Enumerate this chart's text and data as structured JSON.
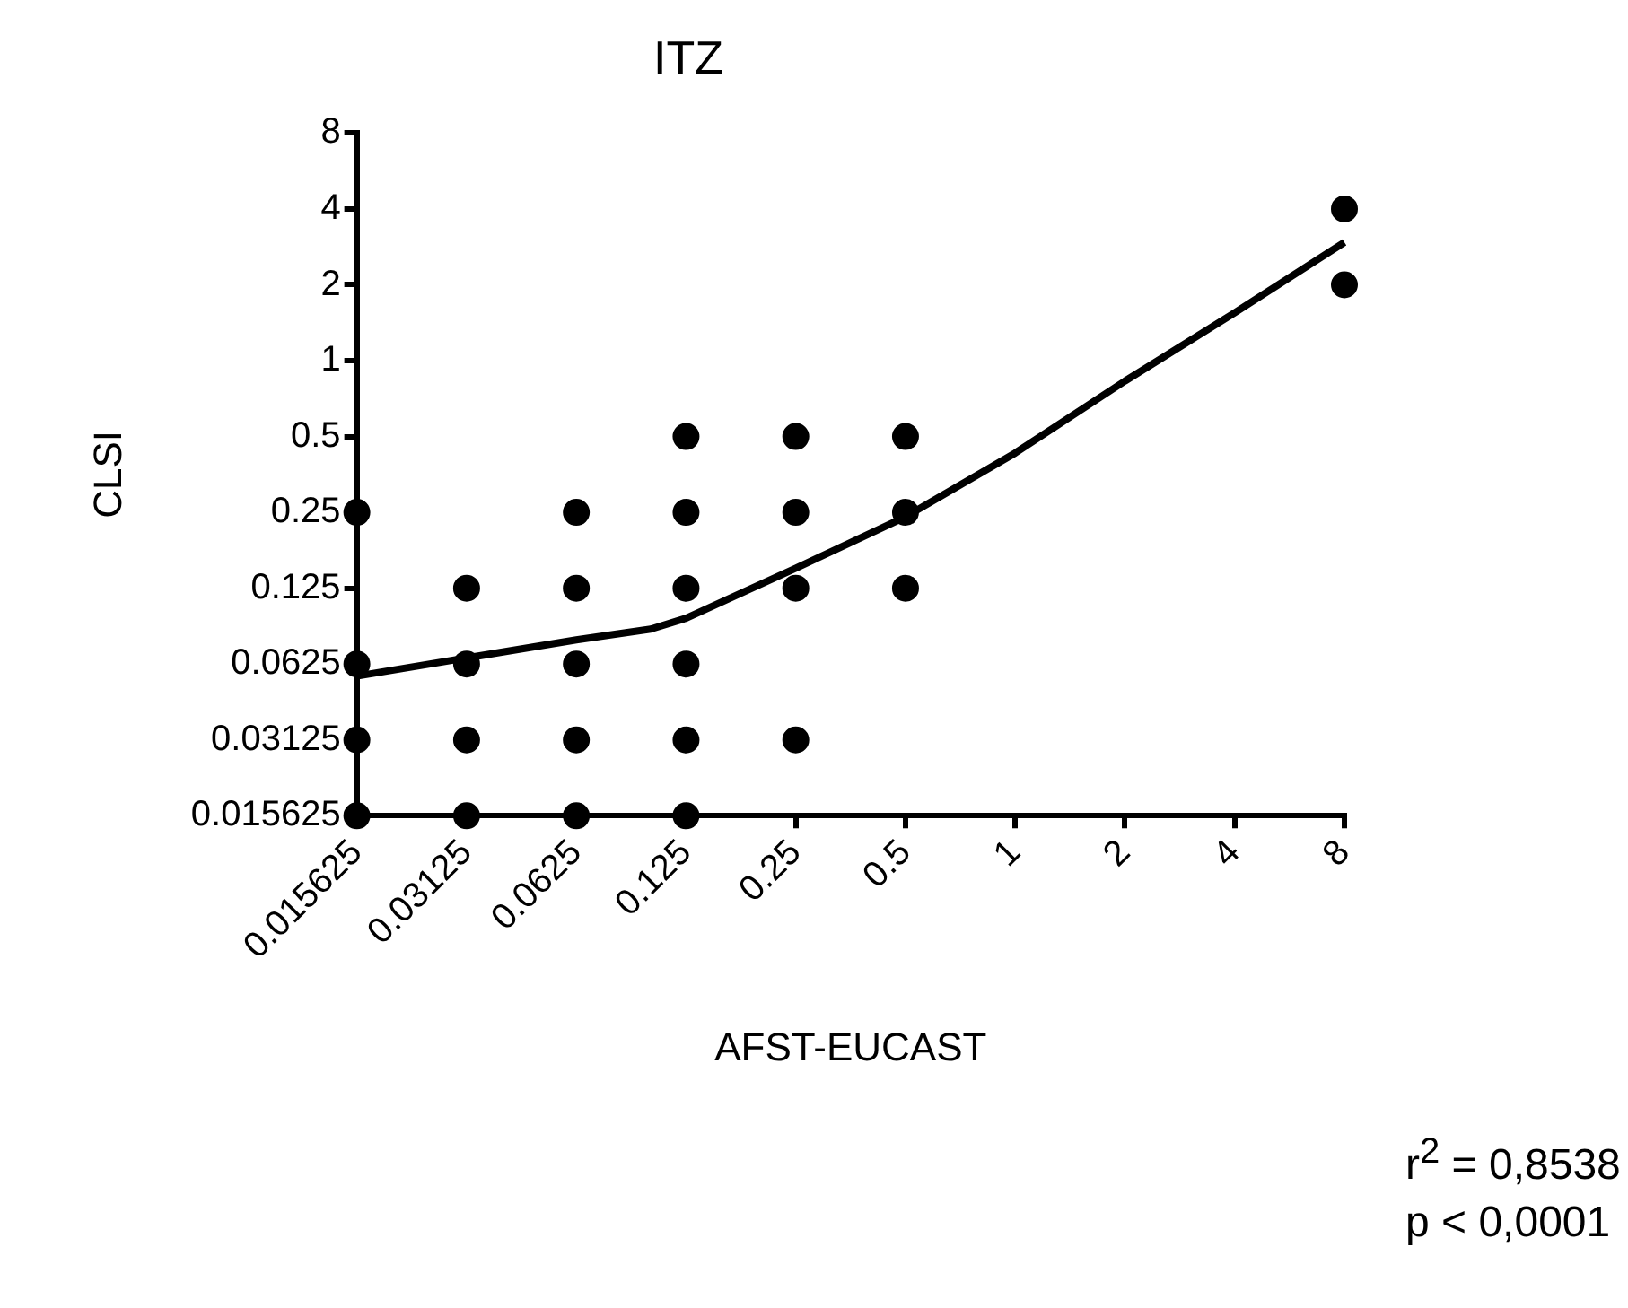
{
  "chart_data": {
    "type": "scatter",
    "title": "ITZ",
    "xlabel": "AFST-EUCAST",
    "ylabel": "CLSI",
    "log": "xy",
    "legend": false,
    "xlim": [
      0.015625,
      8
    ],
    "xticks": [
      0.015625,
      0.03125,
      0.0625,
      0.125,
      0.25,
      0.5,
      1,
      2,
      4,
      8
    ],
    "ylim": [
      0.015625,
      8
    ],
    "yticks": [
      0.015625,
      0.03125,
      0.0625,
      0.125,
      0.25,
      0.5,
      1,
      2,
      4,
      8
    ],
    "series": [
      {
        "marker": "circle",
        "color": "#000000",
        "x": [
          0.015625,
          0.015625,
          0.015625,
          0.015625,
          0.03125,
          0.03125,
          0.03125,
          0.03125,
          0.0625,
          0.0625,
          0.0625,
          0.0625,
          0.0625,
          0.125,
          0.125,
          0.125,
          0.125,
          0.125,
          0.125,
          0.25,
          0.25,
          0.25,
          0.25,
          0.5,
          0.5,
          0.5,
          8,
          8
        ],
        "values": [
          0.25,
          0.0625,
          0.03125,
          0.015625,
          0.125,
          0.0625,
          0.03125,
          0.015625,
          0.25,
          0.125,
          0.0625,
          0.03125,
          0.015625,
          0.5,
          0.25,
          0.125,
          0.0625,
          0.03125,
          0.015625,
          0.5,
          0.25,
          0.125,
          0.03125,
          0.5,
          0.25,
          0.125,
          4,
          2
        ]
      },
      {
        "type": "line",
        "marker": "none",
        "color": "#000000",
        "x": [
          0.015625,
          0.0625,
          0.1,
          0.125,
          0.25,
          0.5,
          1,
          2,
          4,
          8
        ],
        "values": [
          0.056,
          0.078,
          0.086,
          0.095,
          0.15,
          0.24,
          0.43,
          0.83,
          1.55,
          2.95
        ]
      }
    ],
    "annotations": [
      "r$^{2}$ = 0,8538",
      "p < 0,0001"
    ]
  }
}
